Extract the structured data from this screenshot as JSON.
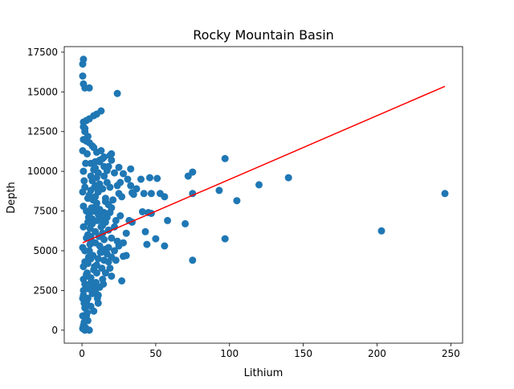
{
  "chart_data": {
    "type": "scatter",
    "title": "Rocky Mountain Basin",
    "xlabel": "Lithium",
    "ylabel": "Depth",
    "xlim": [
      -12,
      258
    ],
    "ylim": [
      -820,
      17850
    ],
    "xticks": [
      0,
      50,
      100,
      150,
      200,
      250
    ],
    "xtick_labels": [
      "0",
      "50",
      "100",
      "150",
      "200",
      "250"
    ],
    "yticks": [
      0,
      2500,
      5000,
      7500,
      10000,
      12500,
      15000,
      17500
    ],
    "ytick_labels": [
      "0",
      "2500",
      "5000",
      "7500",
      "10000",
      "12500",
      "15000",
      "17500"
    ],
    "grid": false,
    "legend": "none",
    "point_color": "#1f77b4",
    "fit_line_color": "#ff0000",
    "series": [
      {
        "values": [
          [
            1,
            17050
          ],
          [
            0.5,
            16750
          ],
          [
            0.5,
            16000
          ],
          [
            1,
            15500
          ],
          [
            2,
            15250
          ],
          [
            5,
            15250
          ],
          [
            24,
            14900
          ],
          [
            13,
            13800
          ],
          [
            10,
            13600
          ],
          [
            8,
            13500
          ],
          [
            5,
            13300
          ],
          [
            3,
            13200
          ],
          [
            1,
            13100
          ],
          [
            1,
            12800
          ],
          [
            2,
            12500
          ],
          [
            1,
            12000
          ],
          [
            3,
            11900
          ],
          [
            5,
            11800
          ],
          [
            8,
            11500
          ],
          [
            10,
            11200
          ],
          [
            0.5,
            11300
          ],
          [
            20,
            11100
          ],
          [
            15,
            10900
          ],
          [
            20,
            10700
          ],
          [
            12,
            10600
          ],
          [
            6,
            10500
          ],
          [
            9,
            10200
          ],
          [
            25,
            10250
          ],
          [
            33,
            10150
          ],
          [
            17,
            10050
          ],
          [
            22,
            9900
          ],
          [
            28,
            9850
          ],
          [
            15,
            9700
          ],
          [
            31,
            9500
          ],
          [
            40,
            9500
          ],
          [
            46,
            9600
          ],
          [
            51,
            9550
          ],
          [
            26,
            9300
          ],
          [
            33,
            9100
          ],
          [
            37,
            8900
          ],
          [
            34,
            8650
          ],
          [
            35,
            8550
          ],
          [
            42,
            8600
          ],
          [
            47,
            8600
          ],
          [
            53,
            8600
          ],
          [
            56,
            8400
          ],
          [
            72,
            9700
          ],
          [
            75,
            9950
          ],
          [
            75,
            8600
          ],
          [
            93,
            8800
          ],
          [
            97,
            10800
          ],
          [
            105,
            8150
          ],
          [
            120,
            9150
          ],
          [
            140,
            9600
          ],
          [
            246,
            8600
          ],
          [
            203,
            6250
          ],
          [
            97,
            5750
          ],
          [
            75,
            4400
          ],
          [
            70,
            6700
          ],
          [
            58,
            6900
          ],
          [
            56,
            5300
          ],
          [
            50,
            5750
          ],
          [
            47,
            7350
          ],
          [
            45,
            7400
          ],
          [
            41,
            7450
          ],
          [
            44,
            5400
          ],
          [
            43,
            6200
          ],
          [
            32,
            6900
          ],
          [
            34,
            6800
          ],
          [
            30,
            6100
          ],
          [
            30,
            4700
          ],
          [
            28,
            4650
          ],
          [
            27,
            3100
          ],
          [
            24,
            5600
          ],
          [
            25,
            5300
          ],
          [
            23,
            4400
          ],
          [
            28,
            5500
          ],
          [
            20,
            4600
          ],
          [
            20,
            5800
          ],
          [
            16,
            6800
          ],
          [
            19,
            7400
          ],
          [
            20,
            7700
          ],
          [
            17,
            7100
          ],
          [
            18,
            6300
          ],
          [
            13,
            6500
          ],
          [
            15,
            4400
          ],
          [
            14,
            3200
          ],
          [
            16,
            3600
          ],
          [
            12,
            2700
          ],
          [
            11,
            2200
          ],
          [
            11,
            1700
          ],
          [
            8,
            1200
          ],
          [
            5,
            0.1
          ],
          [
            2,
            0.1
          ],
          [
            1,
            300
          ],
          [
            3,
            900
          ],
          [
            2,
            1400
          ],
          [
            4,
            2000
          ],
          [
            1,
            2500
          ],
          [
            6,
            3000
          ],
          [
            3,
            3500
          ],
          [
            1,
            4000
          ],
          [
            6,
            4500
          ],
          [
            2,
            5000
          ],
          [
            9,
            5500
          ],
          [
            4,
            6000
          ],
          [
            1,
            6500
          ],
          [
            7,
            7000
          ],
          [
            3,
            7500
          ],
          [
            10,
            8000
          ],
          [
            5,
            8500
          ],
          [
            2,
            9000
          ],
          [
            12,
            9200
          ],
          [
            6,
            9700
          ],
          [
            1,
            10000
          ],
          [
            0.5,
            5200
          ],
          [
            1,
            7800
          ],
          [
            4,
            8300
          ],
          [
            9,
            6200
          ],
          [
            11,
            7300
          ],
          [
            14,
            8900
          ],
          [
            16,
            8100
          ],
          [
            18,
            7900
          ],
          [
            19,
            9000
          ],
          [
            21,
            8200
          ],
          [
            23,
            6900
          ],
          [
            22,
            6500
          ],
          [
            25,
            8600
          ],
          [
            26,
            7200
          ],
          [
            27,
            8400
          ],
          [
            24,
            9100
          ],
          [
            22,
            5000
          ],
          [
            18,
            5200
          ],
          [
            13,
            4900
          ],
          [
            10,
            4100
          ],
          [
            8,
            3800
          ],
          [
            6,
            3300
          ],
          [
            5,
            2600
          ],
          [
            7,
            2300
          ],
          [
            3,
            1800
          ],
          [
            4,
            600
          ],
          [
            6,
            1500
          ],
          [
            0.5,
            2000
          ],
          [
            1,
            3200
          ],
          [
            2,
            4300
          ],
          [
            3,
            5800
          ],
          [
            4,
            6800
          ],
          [
            5,
            7300
          ],
          [
            6,
            8800
          ],
          [
            7,
            9400
          ],
          [
            8,
            10100
          ],
          [
            9,
            10600
          ],
          [
            10,
            9600
          ],
          [
            11,
            8700
          ],
          [
            12,
            7600
          ],
          [
            13,
            7000
          ],
          [
            14,
            6100
          ],
          [
            15,
            5700
          ],
          [
            16,
            5100
          ],
          [
            17,
            4800
          ],
          [
            18,
            4300
          ],
          [
            19,
            3900
          ],
          [
            20,
            3400
          ],
          [
            8,
            2800
          ],
          [
            9,
            2500
          ],
          [
            10,
            3600
          ],
          [
            11,
            4500
          ],
          [
            12,
            5300
          ],
          [
            13,
            5900
          ],
          [
            14,
            6600
          ],
          [
            15,
            7400
          ],
          [
            16,
            8300
          ],
          [
            17,
            9300
          ],
          [
            18,
            10300
          ],
          [
            19,
            11000
          ],
          [
            7,
            11600
          ],
          [
            4,
            12200
          ],
          [
            2,
            12700
          ],
          [
            0.5,
            8700
          ],
          [
            1.5,
            9400
          ],
          [
            2.5,
            10500
          ],
          [
            3.5,
            11100
          ],
          [
            4.5,
            7100
          ],
          [
            5.5,
            6400
          ],
          [
            6.5,
            5600
          ],
          [
            7.5,
            4700
          ],
          [
            8.5,
            4000
          ],
          [
            9.5,
            3000
          ],
          [
            10.5,
            2000
          ],
          [
            0.5,
            900
          ],
          [
            1.5,
            1700
          ],
          [
            2.5,
            2600
          ],
          [
            3.5,
            3600
          ],
          [
            4.5,
            4600
          ],
          [
            5.5,
            5400
          ],
          [
            6.5,
            7700
          ],
          [
            7.5,
            8200
          ],
          [
            8.5,
            9000
          ],
          [
            9.5,
            7800
          ],
          [
            10.5,
            6900
          ],
          [
            11.5,
            5900
          ],
          [
            12.5,
            4900
          ],
          [
            13.5,
            3900
          ],
          [
            14.5,
            2900
          ],
          [
            0.5,
            100
          ],
          [
            1.5,
            500
          ],
          [
            2.5,
            150
          ],
          [
            3.5,
            1100
          ],
          [
            1,
            2200
          ],
          [
            2,
            2900
          ],
          [
            3,
            3400
          ],
          [
            4,
            4200
          ],
          [
            5,
            5000
          ],
          [
            6,
            5900
          ],
          [
            7,
            6700
          ],
          [
            8,
            7500
          ],
          [
            9,
            8400
          ],
          [
            10,
            9100
          ],
          [
            11,
            9900
          ],
          [
            12,
            10700
          ],
          [
            13,
            11300
          ],
          [
            14,
            10800
          ],
          [
            15,
            10300
          ]
        ]
      }
    ],
    "fit_line": {
      "type": "linear",
      "points": [
        [
          0.5,
          5500
        ],
        [
          246,
          15350
        ]
      ]
    }
  }
}
